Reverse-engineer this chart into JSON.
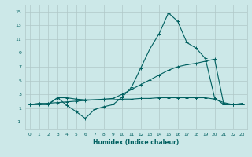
{
  "xlabel": "Humidex (Indice chaleur)",
  "background_color": "#cce8e8",
  "grid_color": "#b0c8c8",
  "line_color": "#006060",
  "xlim": [
    -0.5,
    23.5
  ],
  "ylim": [
    -2,
    16
  ],
  "xticks": [
    0,
    1,
    2,
    3,
    4,
    5,
    6,
    7,
    8,
    9,
    10,
    11,
    12,
    13,
    14,
    15,
    16,
    17,
    18,
    19,
    20,
    21,
    22,
    23
  ],
  "yticks": [
    -1,
    1,
    3,
    5,
    7,
    9,
    11,
    13,
    15
  ],
  "line1_x": [
    0,
    1,
    2,
    3,
    4,
    5,
    6,
    7,
    8,
    9,
    10,
    11,
    12,
    13,
    14,
    15,
    16,
    17,
    18,
    19,
    20,
    21,
    22,
    23
  ],
  "line1_y": [
    1.5,
    1.7,
    1.6,
    2.5,
    1.4,
    0.5,
    -0.5,
    0.8,
    1.2,
    1.5,
    2.6,
    4.0,
    6.8,
    9.6,
    11.8,
    14.8,
    13.6,
    10.5,
    9.7,
    8.2,
    2.5,
    1.5,
    1.5,
    1.7
  ],
  "line2_x": [
    0,
    1,
    2,
    3,
    4,
    5,
    6,
    7,
    8,
    9,
    10,
    11,
    12,
    13,
    14,
    15,
    16,
    17,
    18,
    19,
    20,
    21,
    22,
    23
  ],
  "line2_y": [
    1.5,
    1.5,
    1.5,
    2.5,
    2.5,
    2.3,
    2.2,
    2.2,
    2.2,
    2.2,
    2.3,
    2.3,
    2.4,
    2.4,
    2.5,
    2.5,
    2.5,
    2.5,
    2.5,
    2.5,
    2.3,
    1.8,
    1.5,
    1.5
  ],
  "line3_x": [
    0,
    1,
    2,
    3,
    4,
    5,
    6,
    7,
    8,
    9,
    10,
    11,
    12,
    13,
    14,
    15,
    16,
    17,
    18,
    19,
    20,
    21,
    22,
    23
  ],
  "line3_y": [
    1.5,
    1.6,
    1.7,
    1.8,
    1.9,
    2.0,
    2.1,
    2.2,
    2.3,
    2.4,
    3.0,
    3.7,
    4.4,
    5.1,
    5.8,
    6.5,
    7.0,
    7.3,
    7.5,
    7.8,
    8.1,
    1.5,
    1.5,
    1.5
  ],
  "figwidth": 3.2,
  "figheight": 2.0,
  "dpi": 100
}
